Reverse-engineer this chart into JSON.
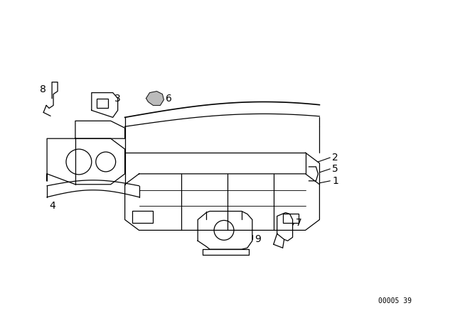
{
  "background_color": "#ffffff",
  "line_color": "#000000",
  "diagram_code": "00005 39",
  "label_fontsize": 10
}
